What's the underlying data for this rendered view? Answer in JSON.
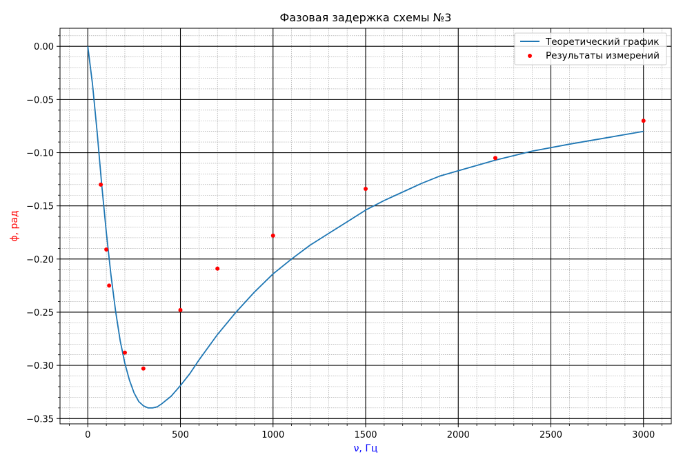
{
  "chart_data": {
    "type": "line+scatter",
    "title": "Фазовая задержка схемы №3",
    "xlabel": "ν, Гц",
    "ylabel": "ϕ, рад",
    "xlabel_color": "#0000ff",
    "ylabel_color": "#ff0000",
    "xlim": [
      -150,
      3150
    ],
    "ylim": [
      -0.355,
      0.017
    ],
    "x_ticks": [
      0,
      500,
      1000,
      1500,
      2000,
      2500,
      3000
    ],
    "x_tick_labels": [
      "0",
      "500",
      "1000",
      "1500",
      "2000",
      "2500",
      "3000"
    ],
    "y_ticks": [
      0.0,
      -0.05,
      -0.1,
      -0.15,
      -0.2,
      -0.25,
      -0.3,
      -0.35
    ],
    "y_tick_labels": [
      "0.00",
      "−0.05",
      "−0.10",
      "−0.15",
      "−0.20",
      "−0.25",
      "−0.30",
      "−0.35"
    ],
    "grid": {
      "major": true,
      "minor": true,
      "major_color": "#000000",
      "minor_color": "#999999"
    },
    "legend": {
      "position": "top-right",
      "entries": [
        {
          "label": "Теоретический график",
          "kind": "line",
          "color": "#1f77b4"
        },
        {
          "label": "Результаты измерений",
          "kind": "marker",
          "color": "#ff0000"
        }
      ]
    },
    "series": [
      {
        "name": "Теоретический график",
        "kind": "line",
        "color": "#1f77b4",
        "x": [
          0,
          25,
          50,
          75,
          100,
          125,
          150,
          175,
          200,
          225,
          250,
          275,
          300,
          325,
          350,
          375,
          400,
          450,
          500,
          550,
          600,
          700,
          800,
          900,
          1000,
          1100,
          1200,
          1300,
          1400,
          1500,
          1600,
          1700,
          1800,
          1900,
          2000,
          2200,
          2400,
          2600,
          2800,
          3000
        ],
        "y": [
          0.0,
          -0.035,
          -0.08,
          -0.13,
          -0.175,
          -0.215,
          -0.249,
          -0.277,
          -0.298,
          -0.314,
          -0.326,
          -0.334,
          -0.338,
          -0.34,
          -0.34,
          -0.339,
          -0.336,
          -0.329,
          -0.319,
          -0.308,
          -0.295,
          -0.271,
          -0.25,
          -0.231,
          -0.214,
          -0.2,
          -0.187,
          -0.176,
          -0.165,
          -0.154,
          -0.145,
          -0.137,
          -0.129,
          -0.122,
          -0.117,
          -0.107,
          -0.0985,
          -0.092,
          -0.086,
          -0.08
        ]
      },
      {
        "name": "Результаты измерений",
        "kind": "scatter",
        "color": "#ff0000",
        "x": [
          70,
          100,
          115,
          200,
          300,
          500,
          700,
          1000,
          1500,
          2200,
          3000
        ],
        "y": [
          -0.13,
          -0.191,
          -0.225,
          -0.288,
          -0.303,
          -0.248,
          -0.209,
          -0.178,
          -0.134,
          -0.105,
          -0.07
        ]
      }
    ]
  }
}
